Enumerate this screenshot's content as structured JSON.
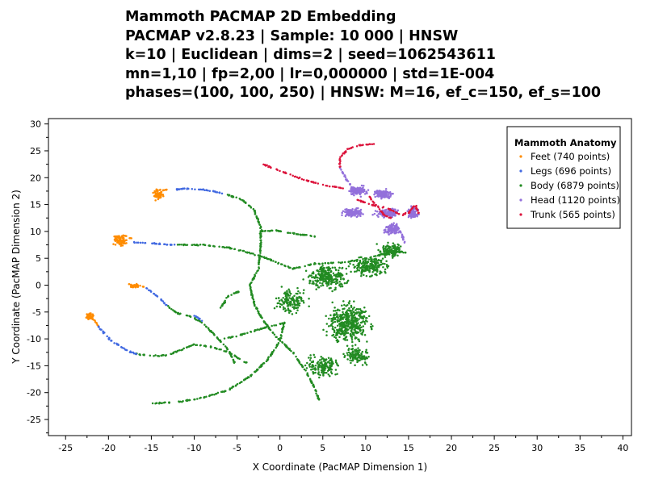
{
  "chart_data": {
    "type": "scatter",
    "title_lines": [
      "Mammoth PACMAP 2D Embedding",
      "PACMAP v2.8.23 | Sample: 10 000 | HNSW",
      "k=10 | Euclidean | dims=2 | seed=1062543611",
      "mn=1,10 | fp=2,00 | lr=0,000000 | std=1E-004",
      "phases=(100, 100, 250) | HNSW: M=16, ef_c=150, ef_s=100"
    ],
    "xlabel": "X Coordinate (PacMAP Dimension 1)",
    "ylabel": "Y Coordinate (PacMAP Dimension 2)",
    "xlim": [
      -27,
      41
    ],
    "ylim": [
      -28,
      31
    ],
    "xticks": [
      -25,
      -20,
      -15,
      -10,
      -5,
      0,
      5,
      10,
      15,
      20,
      25,
      30,
      35,
      40
    ],
    "yticks": [
      -25,
      -20,
      -15,
      -10,
      -5,
      0,
      5,
      10,
      15,
      20,
      25,
      30
    ],
    "grid": false,
    "legend": {
      "title": "Mammoth Anatomy",
      "position": "top-right"
    },
    "series": [
      {
        "name": "Feet (740 points)",
        "color": "#ff8c00",
        "segments": [
          [
            [
              -14.5,
              17.8
            ],
            [
              -13.6,
              17.6
            ],
            [
              -13.0,
              17.9
            ]
          ],
          [
            [
              -19.5,
              9.0
            ],
            [
              -18.2,
              9.2
            ],
            [
              -17.2,
              8.6
            ]
          ],
          [
            [
              -17.8,
              0.3
            ],
            [
              -16.8,
              -0.3
            ],
            [
              -15.8,
              -0.3
            ]
          ],
          [
            [
              -22.6,
              -5.1
            ],
            [
              -22.0,
              -6.0
            ],
            [
              -21.2,
              -7.5
            ]
          ]
        ],
        "clusters": [
          {
            "center": [
              -14.2,
              16.8
            ],
            "spread": [
              0.8,
              1.1
            ],
            "n": 60
          },
          {
            "center": [
              -18.6,
              8.2
            ],
            "spread": [
              1.0,
              1.3
            ],
            "n": 70
          },
          {
            "center": [
              -17.0,
              -0.1
            ],
            "spread": [
              0.8,
              0.5
            ],
            "n": 50
          },
          {
            "center": [
              -22.2,
              -5.8
            ],
            "spread": [
              0.5,
              0.8
            ],
            "n": 50
          }
        ]
      },
      {
        "name": "Legs (696 points)",
        "color": "#4169e1",
        "segments": [
          [
            [
              -13.0,
              17.6
            ],
            [
              -11.0,
              18.0
            ],
            [
              -8.5,
              17.7
            ],
            [
              -6.5,
              17.0
            ]
          ],
          [
            [
              -17.0,
              8.0
            ],
            [
              -15.5,
              7.8
            ],
            [
              -13.5,
              7.6
            ],
            [
              -12.0,
              7.5
            ]
          ],
          [
            [
              -15.6,
              -0.5
            ],
            [
              -14.2,
              -2.2
            ],
            [
              -13.2,
              -3.8
            ]
          ],
          [
            [
              -21.2,
              -7.6
            ],
            [
              -19.8,
              -10.2
            ],
            [
              -18.0,
              -12.0
            ],
            [
              -16.8,
              -12.8
            ]
          ],
          [
            [
              -10.0,
              -5.6
            ],
            [
              -9.0,
              -6.7
            ]
          ]
        ],
        "clusters": []
      },
      {
        "name": "Body (6879 points)",
        "color": "#228b22",
        "segments": [
          [
            [
              -6.5,
              17.0
            ],
            [
              -4.5,
              16.0
            ],
            [
              -3.0,
              14.0
            ],
            [
              -2.2,
              10.5
            ],
            [
              -2.3,
              6.5
            ],
            [
              -2.5,
              3.0
            ],
            [
              -3.5,
              0.0
            ],
            [
              -3.0,
              -3.5
            ]
          ],
          [
            [
              -12.0,
              7.5
            ],
            [
              -9.0,
              7.5
            ],
            [
              -6.0,
              7.0
            ],
            [
              -3.5,
              6.0
            ],
            [
              -1.5,
              5.0
            ],
            [
              0.0,
              4.0
            ],
            [
              1.5,
              3.0
            ]
          ],
          [
            [
              -13.2,
              -3.8
            ],
            [
              -12.0,
              -5.2
            ],
            [
              -10.5,
              -5.8
            ],
            [
              -9.0,
              -7.0
            ],
            [
              -7.5,
              -9.5
            ],
            [
              -6.0,
              -12.0
            ],
            [
              -5.3,
              -14.5
            ]
          ],
          [
            [
              -16.8,
              -12.8
            ],
            [
              -15.0,
              -13.2
            ],
            [
              -13.0,
              -13.0
            ],
            [
              -11.5,
              -12.0
            ],
            [
              -10.0,
              -11.0
            ],
            [
              -8.0,
              -11.5
            ],
            [
              -6.0,
              -12.5
            ],
            [
              -3.8,
              -14.5
            ]
          ],
          [
            [
              -15.0,
              -22.0
            ],
            [
              -12.0,
              -21.8
            ],
            [
              -9.0,
              -21.0
            ],
            [
              -6.0,
              -19.5
            ],
            [
              -3.5,
              -17.0
            ],
            [
              -1.5,
              -14.0
            ],
            [
              0.0,
              -10.5
            ],
            [
              0.5,
              -7.0
            ]
          ],
          [
            [
              -2.5,
              10.0
            ],
            [
              -0.5,
              10.2
            ],
            [
              2.0,
              9.5
            ],
            [
              4.5,
              9.0
            ]
          ],
          [
            [
              -3.0,
              -3.5
            ],
            [
              -2.0,
              -6.5
            ],
            [
              -0.5,
              -9.5
            ],
            [
              1.5,
              -12.5
            ],
            [
              3.0,
              -16.0
            ],
            [
              4.0,
              -19.0
            ],
            [
              4.6,
              -21.5
            ]
          ],
          [
            [
              1.5,
              3.0
            ],
            [
              4.0,
              4.0
            ],
            [
              7.5,
              4.2
            ],
            [
              10.0,
              5.0
            ],
            [
              12.0,
              5.8
            ],
            [
              14.0,
              6.2
            ],
            [
              15.0,
              6.0
            ]
          ],
          [
            [
              -6.5,
              -10.0
            ],
            [
              -4.0,
              -9.0
            ],
            [
              -2.0,
              -8.0
            ],
            [
              0.5,
              -7.0
            ]
          ],
          [
            [
              -7.0,
              -4.5
            ],
            [
              -6.0,
              -2.0
            ],
            [
              -4.5,
              -1.0
            ]
          ]
        ],
        "clusters": [
          {
            "center": [
              8.0,
              -7.0
            ],
            "spread": [
              3.4,
              5.0
            ],
            "n": 430
          },
          {
            "center": [
              5.5,
              1.5
            ],
            "spread": [
              3.2,
              2.8
            ],
            "n": 260
          },
          {
            "center": [
              10.5,
              3.5
            ],
            "spread": [
              2.6,
              2.4
            ],
            "n": 200
          },
          {
            "center": [
              13.0,
              6.5
            ],
            "spread": [
              2.0,
              1.8
            ],
            "n": 130
          },
          {
            "center": [
              5.0,
              -15.0
            ],
            "spread": [
              2.5,
              2.8
            ],
            "n": 150
          },
          {
            "center": [
              9.0,
              -13.0
            ],
            "spread": [
              2.0,
              2.5
            ],
            "n": 110
          },
          {
            "center": [
              1.5,
              -3.0
            ],
            "spread": [
              2.5,
              3.0
            ],
            "n": 150
          }
        ]
      },
      {
        "name": "Head (1120 points)",
        "color": "#9370db",
        "segments": [
          [
            [
              7.0,
              22.0
            ],
            [
              7.8,
              19.5
            ],
            [
              8.5,
              18.0
            ]
          ],
          [
            [
              13.5,
              11.5
            ],
            [
              14.2,
              9.5
            ],
            [
              14.6,
              7.5
            ]
          ]
        ],
        "clusters": [
          {
            "center": [
              9.0,
              17.5
            ],
            "spread": [
              1.5,
              1.1
            ],
            "n": 140
          },
          {
            "center": [
              12.0,
              17.0
            ],
            "spread": [
              1.5,
              1.0
            ],
            "n": 120
          },
          {
            "center": [
              8.5,
              13.5
            ],
            "spread": [
              1.6,
              1.0
            ],
            "n": 130
          },
          {
            "center": [
              12.5,
              13.5
            ],
            "spread": [
              1.8,
              1.2
            ],
            "n": 120
          },
          {
            "center": [
              15.5,
              13.5
            ],
            "spread": [
              0.8,
              1.3
            ],
            "n": 90
          },
          {
            "center": [
              13.0,
              10.5
            ],
            "spread": [
              1.2,
              1.6
            ],
            "n": 90
          }
        ]
      },
      {
        "name": "Trunk (565 points)",
        "color": "#dc143c",
        "segments": [
          [
            [
              -2.0,
              22.5
            ],
            [
              0.5,
              21.0
            ],
            [
              3.0,
              19.5
            ],
            [
              5.5,
              18.5
            ],
            [
              7.5,
              18.0
            ]
          ],
          [
            [
              7.0,
              22.0
            ],
            [
              7.0,
              23.8
            ],
            [
              8.0,
              25.4
            ],
            [
              9.5,
              26.1
            ],
            [
              11.0,
              26.3
            ]
          ],
          [
            [
              8.8,
              16.0
            ],
            [
              10.5,
              15.0
            ],
            [
              12.0,
              14.5
            ],
            [
              13.0,
              14.0
            ],
            [
              14.2,
              13.0
            ],
            [
              15.0,
              13.5
            ],
            [
              15.8,
              15.0
            ],
            [
              16.2,
              13.0
            ]
          ],
          [
            [
              10.5,
              16.5
            ],
            [
              11.0,
              15.2
            ],
            [
              12.2,
              13.0
            ],
            [
              13.0,
              12.5
            ]
          ]
        ],
        "clusters": []
      }
    ]
  }
}
